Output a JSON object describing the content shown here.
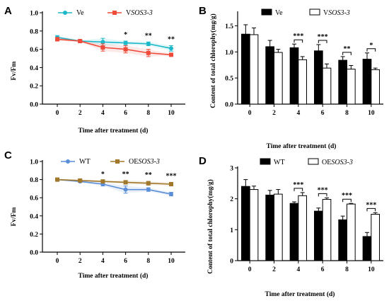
{
  "panels": [
    {
      "letter": "A",
      "type": "line",
      "x": [
        0,
        2,
        4,
        6,
        8,
        10
      ],
      "xlabel": "Time after treatment (d)",
      "ylabel": "Fv/Fm",
      "ylim": [
        0.0,
        1.0
      ],
      "yticks": [
        "0.0",
        "0.2",
        "0.4",
        "0.6",
        "0.8",
        "1.0"
      ],
      "series": [
        {
          "name": "Ve",
          "name_italic": "",
          "color": "#1ab8c8",
          "marker": "circle",
          "values": [
            0.73,
            0.69,
            0.68,
            0.67,
            0.66,
            0.61
          ],
          "errors": [
            0.02,
            0.01,
            0.04,
            0.02,
            0.02,
            0.03
          ]
        },
        {
          "name": "V",
          "name_italic": "SOS3-3",
          "color": "#ef4b3a",
          "marker": "square",
          "values": [
            0.71,
            0.69,
            0.62,
            0.6,
            0.56,
            0.54
          ],
          "errors": [
            0.02,
            0.01,
            0.04,
            0.04,
            0.04,
            0.01
          ]
        }
      ],
      "annotations": [
        {
          "x": 6,
          "text": "*"
        },
        {
          "x": 8,
          "text": "**"
        },
        {
          "x": 10,
          "text": "**"
        }
      ]
    },
    {
      "letter": "B",
      "type": "bar",
      "x": [
        0,
        2,
        4,
        6,
        8,
        10
      ],
      "xlabel": "Time after treatment (d)",
      "ylabel": "Content of total chlorophy(mg/g)",
      "ylim": [
        0.0,
        1.75
      ],
      "yticks": [
        "0.0",
        "0.5",
        "1.0",
        "1.5"
      ],
      "series": [
        {
          "name": "Ve",
          "name_italic": "",
          "color": "#000000",
          "values": [
            1.34,
            1.1,
            1.08,
            1.02,
            0.84,
            0.86
          ],
          "errors": [
            0.18,
            0.12,
            0.07,
            0.12,
            0.07,
            0.12
          ]
        },
        {
          "name": "V",
          "name_italic": "SOS3-3",
          "color": "#ffffff",
          "values": [
            1.33,
            0.99,
            0.85,
            0.69,
            0.67,
            0.66
          ],
          "errors": [
            0.13,
            0.06,
            0.06,
            0.08,
            0.07,
            0.03
          ]
        }
      ],
      "annotations": [
        {
          "x": 4,
          "text": "***"
        },
        {
          "x": 6,
          "text": "***"
        },
        {
          "x": 8,
          "text": "**"
        },
        {
          "x": 10,
          "text": "*"
        }
      ]
    },
    {
      "letter": "C",
      "type": "line",
      "x": [
        0,
        2,
        4,
        6,
        8,
        10
      ],
      "xlabel": "Time after treatment (d)",
      "ylabel": "Fv/Fm",
      "ylim": [
        0.0,
        1.0
      ],
      "yticks": [
        "0.0",
        "0.2",
        "0.4",
        "0.6",
        "0.8",
        "1.0"
      ],
      "series": [
        {
          "name": "WT",
          "name_italic": "",
          "color": "#5b8ed8",
          "marker": "circle",
          "values": [
            0.8,
            0.78,
            0.75,
            0.69,
            0.69,
            0.64
          ],
          "errors": [
            0.005,
            0.01,
            0.02,
            0.04,
            0.02,
            0.02
          ]
        },
        {
          "name": "OE",
          "name_italic": "SOS3-3",
          "color": "#a1782c",
          "marker": "square",
          "values": [
            0.8,
            0.79,
            0.78,
            0.77,
            0.76,
            0.75
          ],
          "errors": [
            0.005,
            0.01,
            0.01,
            0.02,
            0.02,
            0.02
          ]
        }
      ],
      "annotations": [
        {
          "x": 4,
          "text": "*"
        },
        {
          "x": 6,
          "text": "**"
        },
        {
          "x": 8,
          "text": "**"
        },
        {
          "x": 10,
          "text": "***"
        }
      ]
    },
    {
      "letter": "D",
      "type": "bar",
      "x": [
        0,
        2,
        4,
        6,
        8,
        10
      ],
      "xlabel": "Time after treatment (d)",
      "ylabel": "Content of total chlorophy(mg/g)",
      "ylim": [
        0,
        3
      ],
      "yticks": [
        "0",
        "1",
        "2",
        "3"
      ],
      "series": [
        {
          "name": "WT",
          "name_italic": "",
          "color": "#000000",
          "values": [
            2.4,
            2.12,
            1.85,
            1.6,
            1.32,
            0.78
          ],
          "errors": [
            0.22,
            0.15,
            0.05,
            0.1,
            0.12,
            0.13
          ]
        },
        {
          "name": "OE",
          "name_italic": "SOS3-3",
          "color": "#ffffff",
          "values": [
            2.3,
            2.15,
            2.1,
            1.98,
            1.83,
            1.5
          ],
          "errors": [
            0.11,
            0.15,
            0.1,
            0.05,
            0.02,
            0.05
          ]
        }
      ],
      "annotations": [
        {
          "x": 4,
          "text": "***"
        },
        {
          "x": 6,
          "text": "***"
        },
        {
          "x": 8,
          "text": "***"
        },
        {
          "x": 10,
          "text": "***"
        }
      ]
    }
  ]
}
